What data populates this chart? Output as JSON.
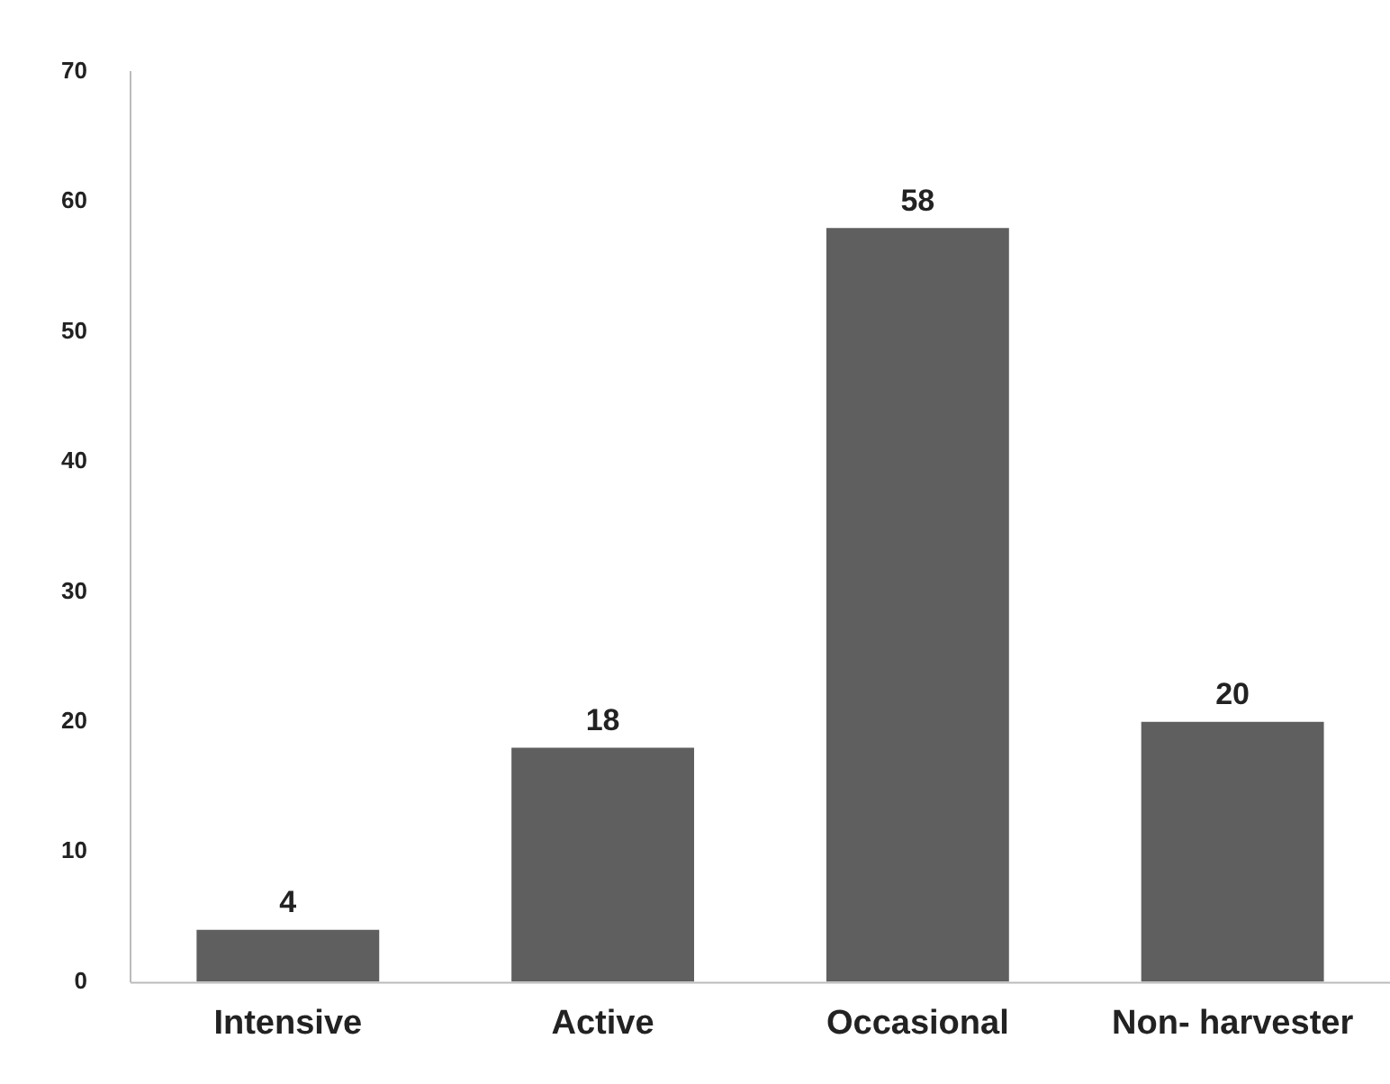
{
  "chart_data": {
    "type": "bar",
    "categories": [
      "Intensive",
      "Active",
      "Occasional",
      "Non- harvester"
    ],
    "values": [
      4,
      18,
      58,
      20
    ],
    "color": "#5f5f5f",
    "ylim": [
      0,
      70
    ],
    "yticks": [
      0,
      10,
      20,
      30,
      40,
      50,
      60,
      70
    ],
    "grid": false,
    "legend": false,
    "data_labels": true
  }
}
